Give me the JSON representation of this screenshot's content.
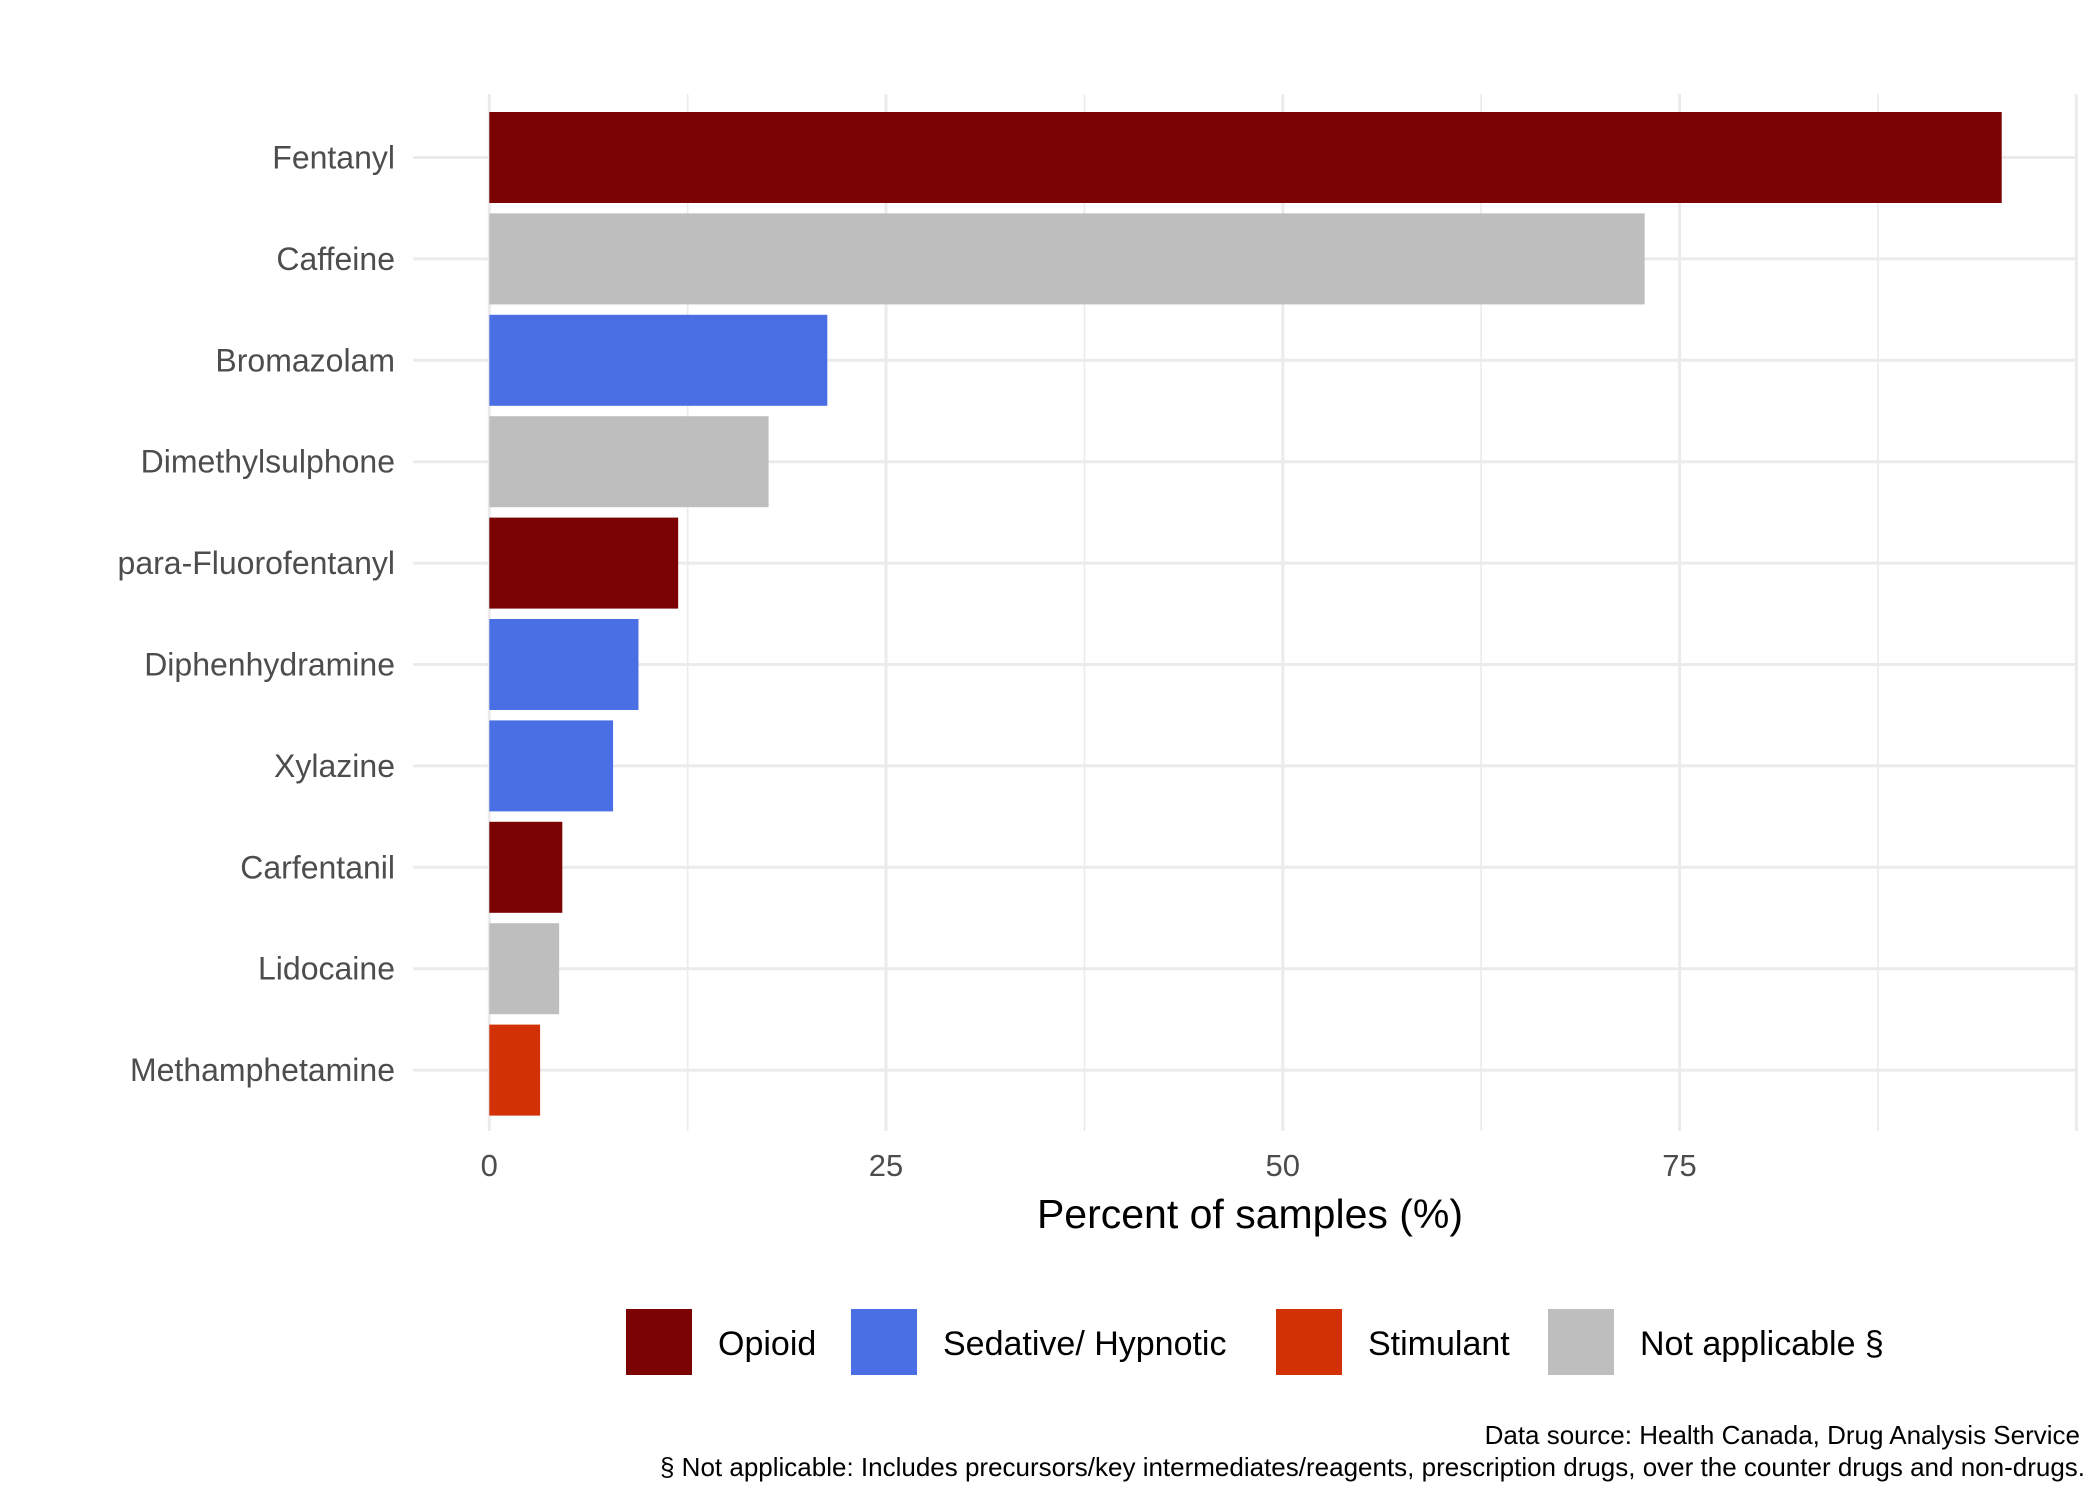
{
  "chart_data": {
    "type": "bar",
    "orientation": "horizontal",
    "title": "",
    "xlabel": "Percent of samples (%)",
    "ylabel": "",
    "xlim": [
      -4.8,
      100.1
    ],
    "xticks": [
      0,
      25,
      50,
      75
    ],
    "grid": true,
    "legend_position": "bottom",
    "categories": [
      "Fentanyl",
      "Caffeine",
      "Bromazolam",
      "Dimethylsulphone",
      "para-Fluorofentanyl",
      "Diphenhydramine",
      "Xylazine",
      "Carfentanil",
      "Lidocaine",
      "Methamphetamine"
    ],
    "values": [
      95.3,
      72.8,
      21.3,
      17.6,
      11.9,
      9.4,
      7.8,
      4.6,
      4.4,
      3.2
    ],
    "groups": [
      "Opioid",
      "Not applicable §",
      "Sedative/ Hypnotic",
      "Not applicable §",
      "Opioid",
      "Sedative/ Hypnotic",
      "Sedative/ Hypnotic",
      "Opioid",
      "Not applicable §",
      "Stimulant"
    ],
    "legend": [
      {
        "name": "Opioid",
        "color": "#7B0303"
      },
      {
        "name": "Sedative/ Hypnotic",
        "color": "#4A6EE4"
      },
      {
        "name": "Stimulant",
        "color": "#D13104"
      },
      {
        "name": "Not applicable §",
        "color": "#BEBEBE"
      }
    ],
    "caption": [
      "Data source: Health Canada, Drug Analysis Service",
      "§ Not applicable: Includes precursors/key intermediates/reagents, prescription drugs, over the counter drugs and non-drugs."
    ]
  }
}
